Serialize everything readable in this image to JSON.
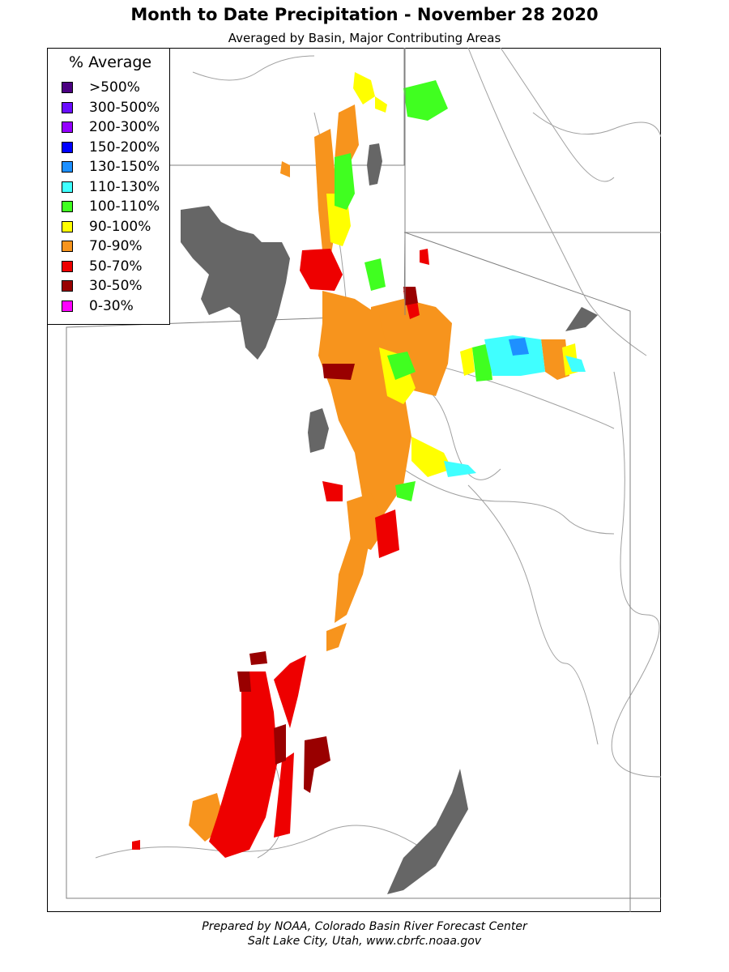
{
  "title": "Month to Date Precipitation - November 28 2020",
  "subtitle": "Averaged by Basin, Major Contributing Areas",
  "legend": {
    "title": "% Average",
    "items": [
      {
        "label": ">500%",
        "color": "#4b0082"
      },
      {
        "label": "300-500%",
        "color": "#6a0dff"
      },
      {
        "label": "200-300%",
        "color": "#9400ff"
      },
      {
        "label": "150-200%",
        "color": "#0000ff"
      },
      {
        "label": "130-150%",
        "color": "#1e90ff"
      },
      {
        "label": "110-130%",
        "color": "#40ffff"
      },
      {
        "label": "100-110%",
        "color": "#40ff20"
      },
      {
        "label": "90-100%",
        "color": "#ffff00"
      },
      {
        "label": "70-90%",
        "color": "#f7941d"
      },
      {
        "label": "50-70%",
        "color": "#ee0000"
      },
      {
        "label": "30-50%",
        "color": "#990000"
      },
      {
        "label": "0-30%",
        "color": "#ff00ff"
      }
    ]
  },
  "lake_color": "#666666",
  "credit": {
    "line1": "Prepared by NOAA, Colorado Basin River Forecast Center",
    "line2": "Salt Lake City, Utah, www.cbrfc.noaa.gov"
  }
}
